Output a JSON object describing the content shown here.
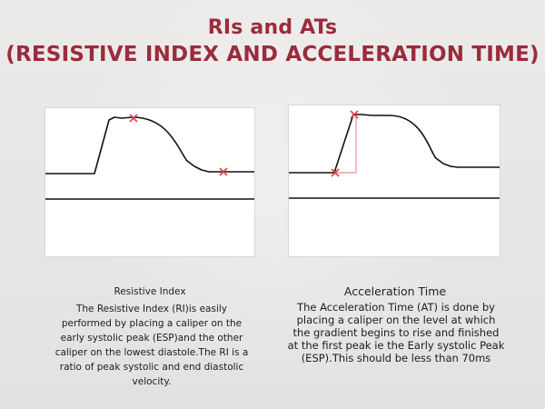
{
  "title": {
    "line1": "RIs and ATs",
    "line2": "(RESISTIVE INDEX AND ACCELERATION TIME)"
  },
  "left": {
    "caption_title": "Resistive Index",
    "caption_body": "The Resistive Index (RI)is easily performed by placing a caliper on the early systolic peak (ESP)and the other caliper on the lowest diastole.The RI is a ratio of peak systolic and end diastolic velocity."
  },
  "right": {
    "caption_title": "Acceleration Time",
    "caption_body": "The Acceleration Time (AT) is done by placing a caliper on the level at which the gradient begins to rise and finished at the first peak ie the Early systolic Peak (ESP).This should be less than 70ms"
  },
  "colors": {
    "title": "#9a2c3b",
    "waveform": "#111111",
    "caliper": "#e0404a",
    "measure_line": "#f08a98"
  }
}
